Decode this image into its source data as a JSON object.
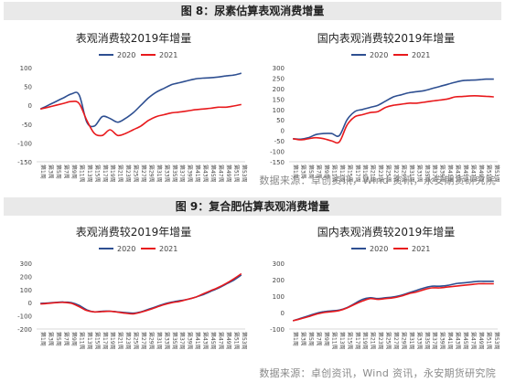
{
  "figures": [
    {
      "title": "图 8：尿素估算表观消费增量",
      "source": "数据来源：卓创资讯，Wind 资讯，永安期货研究院"
    },
    {
      "title": "图 9：复合肥估算表观消费增量",
      "source": "数据来源：卓创资讯，Wind 资讯，永安期货研究院"
    }
  ],
  "colors": {
    "s2020": "#2e4f91",
    "s2021": "#e8191c",
    "axis": "#d9d9d9",
    "text": "#444444"
  },
  "chart_data": [
    {
      "type": "line",
      "title": "表观消费较2019年增量",
      "categories": [
        "第1周",
        "第3周",
        "第5周",
        "第7周",
        "第9周",
        "第11周",
        "第13周",
        "第15周",
        "第17周",
        "第19周",
        "第21周",
        "第23周",
        "第25周",
        "第27周",
        "第29周",
        "第31周",
        "第33周",
        "第35周",
        "第37周",
        "第39周",
        "第41周",
        "第43周",
        "第45周",
        "第47周",
        "第49周",
        "第51周",
        "第53周"
      ],
      "ylim": [
        -150,
        100
      ],
      "yticks": [
        -150,
        -100,
        -50,
        0,
        50,
        100
      ],
      "legend": "top-center",
      "series": [
        {
          "name": "2020",
          "values": [
            -10,
            0,
            10,
            20,
            30,
            28,
            -45,
            -55,
            -30,
            -35,
            -45,
            -35,
            -20,
            0,
            20,
            35,
            45,
            55,
            60,
            65,
            70,
            72,
            73,
            75,
            78,
            80,
            85
          ]
        },
        {
          "name": "2021",
          "values": [
            -10,
            -5,
            0,
            5,
            10,
            5,
            -40,
            -75,
            -80,
            -65,
            -80,
            -75,
            -65,
            -55,
            -40,
            -30,
            -25,
            -20,
            -18,
            -15,
            -12,
            -10,
            -8,
            -5,
            -5,
            -2,
            2
          ]
        }
      ]
    },
    {
      "type": "line",
      "title": "国内表观消费较2019年增量",
      "categories": [
        "第1周",
        "第3周",
        "第5周",
        "第7周",
        "第9周",
        "第11周",
        "第13周",
        "第15周",
        "第17周",
        "第19周",
        "第21周",
        "第23周",
        "第25周",
        "第27周",
        "第29周",
        "第31周",
        "第33周",
        "第35周",
        "第37周",
        "第39周",
        "第41周",
        "第43周",
        "第45周",
        "第47周",
        "第49周",
        "第51周",
        "第53周"
      ],
      "ylim": [
        -150,
        300
      ],
      "yticks": [
        -150,
        -100,
        -50,
        0,
        50,
        100,
        150,
        200,
        250,
        300
      ],
      "legend": "top-center",
      "series": [
        {
          "name": "2020",
          "values": [
            -40,
            -42,
            -35,
            -20,
            -15,
            -15,
            -25,
            50,
            90,
            100,
            110,
            120,
            140,
            160,
            170,
            180,
            185,
            190,
            200,
            210,
            220,
            230,
            238,
            240,
            242,
            245,
            245
          ]
        },
        {
          "name": "2021",
          "values": [
            -40,
            -45,
            -40,
            -35,
            -40,
            -50,
            -55,
            25,
            65,
            75,
            85,
            90,
            110,
            120,
            125,
            130,
            130,
            135,
            140,
            145,
            150,
            160,
            162,
            165,
            165,
            163,
            160
          ]
        }
      ]
    },
    {
      "type": "line",
      "title": "表观消费较2019年增量",
      "categories": [
        "第1周",
        "第3周",
        "第5周",
        "第7周",
        "第9周",
        "第11周",
        "第13周",
        "第15周",
        "第17周",
        "第19周",
        "第21周",
        "第23周",
        "第25周",
        "第27周",
        "第29周",
        "第31周",
        "第33周",
        "第35周",
        "第37周",
        "第39周",
        "第41周",
        "第43周",
        "第45周",
        "第47周",
        "第49周",
        "第51周",
        "第53周"
      ],
      "ylim": [
        -200,
        300
      ],
      "yticks": [
        -200,
        -100,
        0,
        100,
        200,
        300
      ],
      "legend": "top-center",
      "series": [
        {
          "name": "2020",
          "values": [
            -5,
            -2,
            2,
            5,
            0,
            -20,
            -55,
            -70,
            -65,
            -65,
            -70,
            -75,
            -80,
            -70,
            -50,
            -30,
            -10,
            5,
            15,
            25,
            40,
            60,
            85,
            110,
            140,
            170,
            210
          ]
        },
        {
          "name": "2021",
          "values": [
            -10,
            -5,
            0,
            2,
            -5,
            -30,
            -60,
            -70,
            -68,
            -65,
            -72,
            -80,
            -85,
            -72,
            -55,
            -35,
            -15,
            0,
            10,
            25,
            40,
            65,
            90,
            115,
            145,
            180,
            220
          ]
        }
      ]
    },
    {
      "type": "line",
      "title": "国内表观消费较2019年增量",
      "categories": [
        "第1周",
        "第3周",
        "第5周",
        "第7周",
        "第9周",
        "第11周",
        "第13周",
        "第15周",
        "第17周",
        "第19周",
        "第21周",
        "第23周",
        "第25周",
        "第27周",
        "第29周",
        "第31周",
        "第33周",
        "第35周",
        "第37周",
        "第39周",
        "第41周",
        "第43周",
        "第45周",
        "第47周",
        "第49周",
        "第51周",
        "第53周"
      ],
      "ylim": [
        -100,
        300
      ],
      "yticks": [
        -100,
        0,
        100,
        200,
        300
      ],
      "legend": "top-center",
      "series": [
        {
          "name": "2020",
          "values": [
            -50,
            -35,
            -20,
            -5,
            5,
            10,
            15,
            30,
            55,
            80,
            90,
            85,
            90,
            95,
            105,
            120,
            135,
            150,
            160,
            160,
            165,
            175,
            180,
            185,
            190,
            190,
            190
          ]
        },
        {
          "name": "2021",
          "values": [
            -50,
            -38,
            -25,
            -10,
            0,
            5,
            12,
            28,
            50,
            70,
            85,
            80,
            85,
            90,
            100,
            115,
            125,
            140,
            150,
            150,
            155,
            160,
            165,
            170,
            175,
            175,
            175
          ]
        }
      ]
    }
  ]
}
